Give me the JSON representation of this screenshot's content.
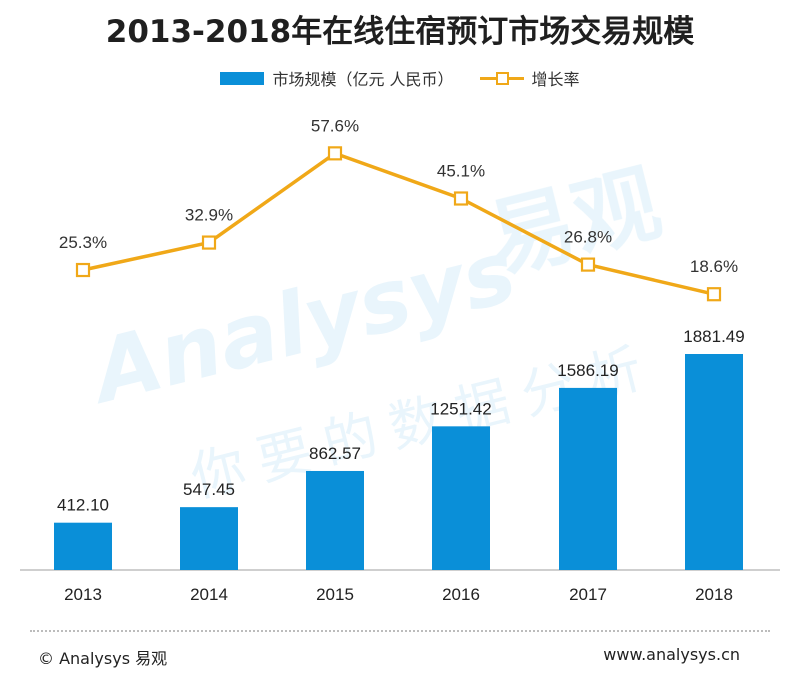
{
  "chart_data": {
    "type": "bar",
    "title": "2013-2018年在线住宿预订市场交易规模",
    "categories": [
      "2013",
      "2014",
      "2015",
      "2016",
      "2017",
      "2018"
    ],
    "series": [
      {
        "name": "市场规模（亿元 人民币）",
        "type": "bar",
        "values": [
          412.1,
          547.45,
          862.57,
          1251.42,
          1586.19,
          1881.49
        ],
        "labels": [
          "412.10",
          "547.45",
          "862.57",
          "1251.42",
          "1586.19",
          "1881.49"
        ],
        "color": "#0a8fd8"
      },
      {
        "name": "增长率",
        "type": "line",
        "values": [
          25.3,
          32.9,
          57.6,
          45.1,
          26.8,
          18.6
        ],
        "labels": [
          "25.3%",
          "32.9%",
          "57.6%",
          "45.1%",
          "26.8%",
          "18.6%"
        ],
        "color": "#f0a818"
      }
    ],
    "legend_position": "top-center",
    "grid": false
  },
  "watermark": {
    "brand": "Analysys",
    "brand_cn": "易观",
    "slogan": "你要的数据分析"
  },
  "footer": {
    "copyright": "© Analysys 易观",
    "website": "www.analysys.cn"
  }
}
